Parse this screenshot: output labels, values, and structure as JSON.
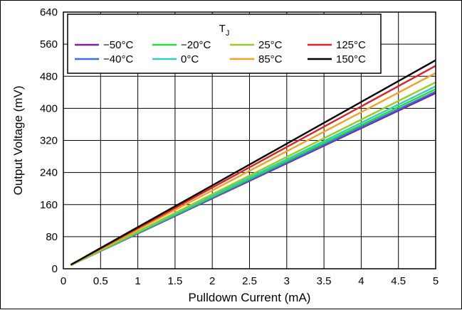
{
  "chart_data": {
    "type": "line",
    "title": "",
    "xlabel": "Pulldown Current (mA)",
    "ylabel": "Output Voltage (mV)",
    "xlim": [
      0,
      5
    ],
    "ylim": [
      0,
      640
    ],
    "x_ticks": [
      "0",
      "0.5",
      "1",
      "1.5",
      "2",
      "2.5",
      "3",
      "3.5",
      "4",
      "4.5",
      "5"
    ],
    "y_ticks": [
      "0",
      "80",
      "160",
      "240",
      "320",
      "400",
      "480",
      "560",
      "640"
    ],
    "grid": true,
    "legend": {
      "title_main": "T",
      "title_sub": "J",
      "placement": "top-left"
    },
    "series": [
      {
        "name": "−50°C",
        "color": "#7b1fa2",
        "x": [
          0.1,
          5
        ],
        "y": [
          9,
          438
        ]
      },
      {
        "name": "−40°C",
        "color": "#3f6fd8",
        "x": [
          0.1,
          5
        ],
        "y": [
          9,
          442
        ]
      },
      {
        "name": "−20°C",
        "color": "#22dd33",
        "x": [
          0.1,
          5
        ],
        "y": [
          9,
          448
        ]
      },
      {
        "name": "0°C",
        "color": "#33ccc0",
        "x": [
          0.1,
          5
        ],
        "y": [
          9,
          455
        ]
      },
      {
        "name": "25°C",
        "color": "#99cc22",
        "x": [
          0.1,
          5
        ],
        "y": [
          9,
          465
        ]
      },
      {
        "name": "85°C",
        "color": "#f5a023",
        "x": [
          0.1,
          5
        ],
        "y": [
          10,
          488
        ]
      },
      {
        "name": "125°C",
        "color": "#e02020",
        "x": [
          0.1,
          5
        ],
        "y": [
          10,
          506
        ]
      },
      {
        "name": "150°C",
        "color": "#000000",
        "x": [
          0.1,
          5
        ],
        "y": [
          10,
          520
        ]
      }
    ]
  }
}
